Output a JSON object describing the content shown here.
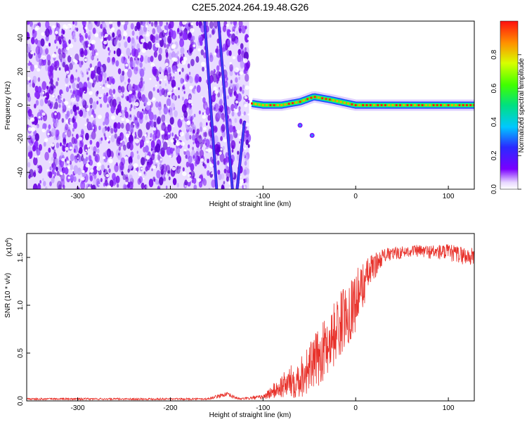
{
  "title": "C2E5.2024.264.19.48.G26",
  "chart_data": [
    {
      "type": "heatmap",
      "xlabel": "Height of straight line (km)",
      "ylabel": "Frequency (Hz)",
      "xlim": [
        -355,
        128
      ],
      "ylim": [
        -50,
        50
      ],
      "xticks": [
        -300,
        -200,
        -100,
        0,
        100
      ],
      "yticks": [
        -40,
        -20,
        0,
        20,
        40
      ],
      "colorbar": {
        "label": "Normalized spectral amplitude",
        "range": [
          0,
          1
        ],
        "ticks": [
          "0.0",
          "0.2",
          "0.4",
          "0.6",
          "0.8"
        ],
        "colormap": "rainbow (purple to red)"
      },
      "features": {
        "noise_region_x": [
          -355,
          -115
        ],
        "ridge_points": [
          {
            "x": -112,
            "y": 1
          },
          {
            "x": -100,
            "y": 0
          },
          {
            "x": -80,
            "y": 0
          },
          {
            "x": -60,
            "y": 2
          },
          {
            "x": -45,
            "y": 5
          },
          {
            "x": -25,
            "y": 3
          },
          {
            "x": 0,
            "y": 0
          },
          {
            "x": 50,
            "y": 0
          },
          {
            "x": 128,
            "y": 0
          }
        ],
        "streaks": [
          {
            "x": [
              -163,
              -150
            ],
            "y": [
              50,
              -50
            ]
          },
          {
            "x": [
              -148,
              -133
            ],
            "y": [
              50,
              -50
            ]
          },
          {
            "x": [
              -120,
              -128
            ],
            "y": [
              -10,
              -50
            ]
          }
        ],
        "blip_points": [
          {
            "x": -60,
            "y": -12
          },
          {
            "x": -47,
            "y": -18
          }
        ]
      },
      "grid": false
    },
    {
      "type": "line",
      "xlabel": "Height of straight line (km)",
      "ylabel": "SNR (10 * v/v)",
      "y_multiplier": "(x10",
      "y_multiplier_exp": "4",
      "xlim": [
        -355,
        128
      ],
      "ylim": [
        0,
        1.75
      ],
      "xticks": [
        -300,
        -200,
        -100,
        0,
        100
      ],
      "yticks": [
        "0.0",
        "0.5",
        "1.0",
        "1.5"
      ],
      "series": [
        {
          "color": "#e8312a",
          "envelope": [
            {
              "x": -355,
              "mean": 0.02,
              "spread": 0.02
            },
            {
              "x": -160,
              "mean": 0.02,
              "spread": 0.02
            },
            {
              "x": -140,
              "mean": 0.07,
              "spread": 0.05
            },
            {
              "x": -125,
              "mean": 0.02,
              "spread": 0.02
            },
            {
              "x": -100,
              "mean": 0.04,
              "spread": 0.05
            },
            {
              "x": -80,
              "mean": 0.15,
              "spread": 0.25
            },
            {
              "x": -60,
              "mean": 0.25,
              "spread": 0.45
            },
            {
              "x": -40,
              "mean": 0.45,
              "spread": 0.6
            },
            {
              "x": -20,
              "mean": 0.75,
              "spread": 0.7
            },
            {
              "x": 0,
              "mean": 1.05,
              "spread": 0.65
            },
            {
              "x": 15,
              "mean": 1.35,
              "spread": 0.35
            },
            {
              "x": 30,
              "mean": 1.52,
              "spread": 0.15
            },
            {
              "x": 60,
              "mean": 1.57,
              "spread": 0.12
            },
            {
              "x": 100,
              "mean": 1.55,
              "spread": 0.18
            },
            {
              "x": 128,
              "mean": 1.5,
              "spread": 0.2
            }
          ]
        }
      ],
      "grid": false
    }
  ]
}
